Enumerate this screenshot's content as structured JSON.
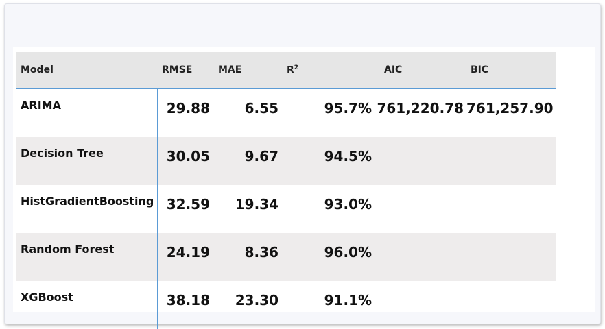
{
  "table": {
    "headers": {
      "model": "Model",
      "rmse": "RMSE",
      "mae": "MAE",
      "r2_base": "R",
      "r2_sup": "2",
      "aic": "AIC",
      "bic": "BIC"
    },
    "rows": [
      {
        "model": "ARIMA",
        "rmse": "29.88",
        "mae": "6.55",
        "r2": "95.7%",
        "aic": "761,220.78",
        "bic": "761,257.90"
      },
      {
        "model": "Decision Tree",
        "rmse": "30.05",
        "mae": "9.67",
        "r2": "94.5%",
        "aic": "",
        "bic": ""
      },
      {
        "model": "HistGradientBoosting",
        "rmse": "32.59",
        "mae": "19.34",
        "r2": "93.0%",
        "aic": "",
        "bic": ""
      },
      {
        "model": "Random Forest",
        "rmse": "24.19",
        "mae": "8.36",
        "r2": "96.0%",
        "aic": "",
        "bic": ""
      },
      {
        "model": "XGBoost",
        "rmse": "38.18",
        "mae": "23.30",
        "r2": "91.1%",
        "aic": "",
        "bic": ""
      }
    ]
  },
  "colors": {
    "accent": "#5b9bd5",
    "header_bg": "#e6e6e6",
    "alt_row_bg": "#eeecec"
  }
}
